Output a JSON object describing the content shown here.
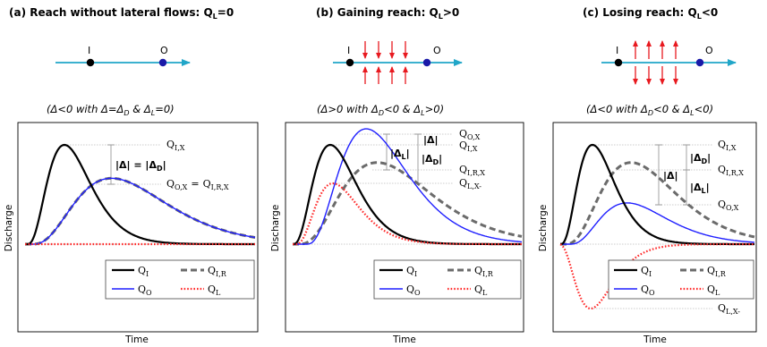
{
  "panels": [
    {
      "title": "(a) Reach without lateral flows: Qₗ=0",
      "title_main": "(a) Reach without lateral flows: Q",
      "title_sub": "L",
      "title_tail": "=0",
      "caption": "(Δ<0 with Δ=ΔD & ΔL=0)",
      "node_in": "I",
      "node_out": "O",
      "arrows": "none",
      "ann": {
        "q_ix": "Q",
        "q_ix_sub": "I,X",
        "q_ox": "Q",
        "q_ox_sub": "O,X",
        "eq": "=",
        "q_irx": "Q",
        "q_irx_sub": "I,R,X",
        "delta": "|Δ| = |Δ",
        "delta_sub": "D",
        "delta_end": "|"
      }
    },
    {
      "title_main": "(b) Gaining reach: Q",
      "title_sub": "L",
      "title_tail": ">0",
      "caption": "(Δ>0 with ΔD<0 & ΔL>0)",
      "node_in": "I",
      "node_out": "O",
      "arrows": "in",
      "ann": {
        "q_ox": "Q",
        "q_ox_sub": "O,X",
        "q_ix": "Q",
        "q_ix_sub": "I,X",
        "q_irx": "Q",
        "q_irx_sub": "I,R,X",
        "q_lx": "Q",
        "q_lx_sub": "L,X-",
        "delta": "|Δ|",
        "delta_l": "|Δ",
        "delta_l_sub": "L",
        "delta_d": "|Δ",
        "delta_d_sub": "D",
        "bar": "|"
      }
    },
    {
      "title_main": "(c) Losing reach: Q",
      "title_sub": "L",
      "title_tail": "<0",
      "caption": "(Δ<0 with ΔD<0 & ΔL<0)",
      "node_in": "I",
      "node_out": "O",
      "arrows": "out",
      "ann": {
        "q_ix": "Q",
        "q_ix_sub": "I,X",
        "q_irx": "Q",
        "q_irx_sub": "I,R,X",
        "q_ox": "Q",
        "q_ox_sub": "O,X",
        "q_lx": "Q",
        "q_lx_sub": "L,X-",
        "delta": "|Δ|",
        "delta_d": "|Δ",
        "delta_d_sub": "D",
        "delta_l": "|Δ",
        "delta_l_sub": "L",
        "bar": "|"
      }
    }
  ],
  "axes": {
    "ylabel": "Discharge",
    "xlabel": "Time"
  },
  "legend": [
    {
      "label": "Q",
      "sub": "I",
      "color": "#000000",
      "style": "solid"
    },
    {
      "label": "Q",
      "sub": "I,R",
      "color": "#6b6b6b",
      "style": "dashed"
    },
    {
      "label": "Q",
      "sub": "O",
      "color": "#1f1fff",
      "style": "solid"
    },
    {
      "label": "Q",
      "sub": "L",
      "color": "#ff2a2a",
      "style": "dotted"
    }
  ],
  "colors": {
    "river": "#21a6c8",
    "node_in": "#000000",
    "node_out": "#1a1aa8",
    "lateral_arrow": "#e8191f"
  }
}
